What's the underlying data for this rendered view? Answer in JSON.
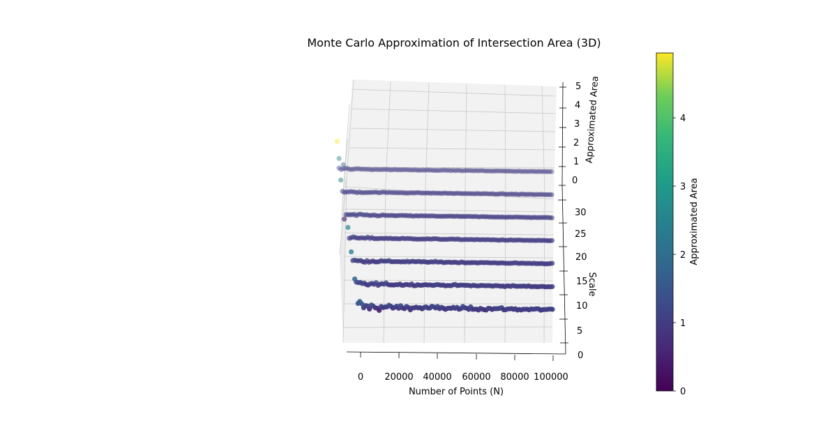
{
  "chart_data": {
    "type": "scatter3d",
    "title": "Monte Carlo Approximation of Intersection Area (3D)",
    "xlabel": "Number of Points (N)",
    "ylabel": "Scale",
    "zlabel": "Approximated Area",
    "colorbar_label": "Approximated Area",
    "colormap": "viridis",
    "xlim": [
      0,
      100000
    ],
    "ylim": [
      0,
      30
    ],
    "zlim": [
      0,
      5
    ],
    "clim": [
      0,
      4.95
    ],
    "x_ticks": [
      "0",
      "20000",
      "40000",
      "60000",
      "80000",
      "100000"
    ],
    "y_ticks": [
      "0",
      "5",
      "10",
      "15",
      "20",
      "25",
      "30"
    ],
    "z_ticks": [
      "0",
      "1",
      "2",
      "3",
      "4",
      "5"
    ],
    "colorbar_ticks": [
      "0",
      "1",
      "2",
      "3",
      "4"
    ],
    "grid": true,
    "scales": [
      1,
      6,
      11,
      16,
      21,
      26,
      31
    ],
    "n_points_per_scale": 100,
    "mean_area": 1.0,
    "points": [
      {
        "x": 100,
        "y": 31,
        "z": 4.95
      },
      {
        "x": 1000,
        "y": 31,
        "z": 2.5
      },
      {
        "x": 3000,
        "y": 31,
        "z": 1.6
      },
      {
        "x": 200,
        "y": 26,
        "z": 2.7
      },
      {
        "x": 200,
        "y": 21,
        "z": 0.4
      },
      {
        "x": 300,
        "y": 16,
        "z": 2.5
      },
      {
        "x": 200,
        "y": 11,
        "z": 2.3
      },
      {
        "x": 200,
        "y": 6,
        "z": 1.7
      },
      {
        "x": 100,
        "y": 1,
        "z": 1.5
      }
    ]
  }
}
